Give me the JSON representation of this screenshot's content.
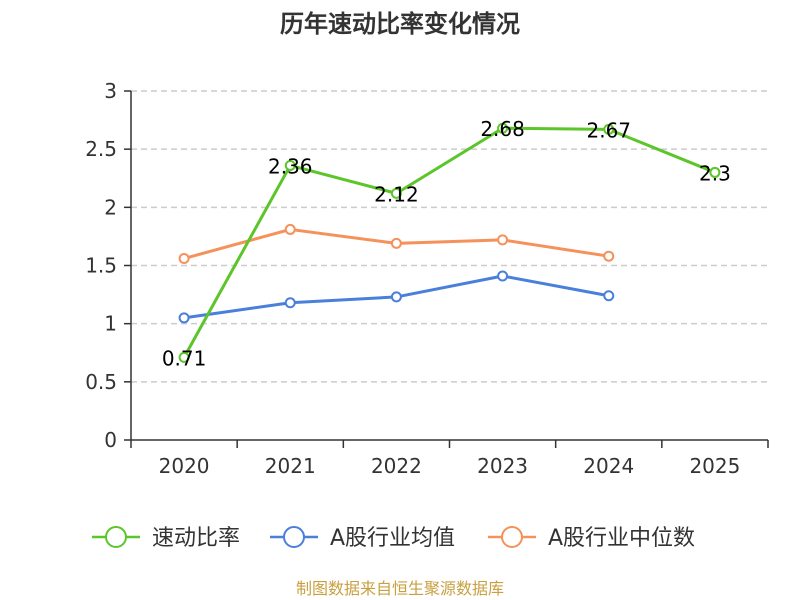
{
  "chart_data": {
    "type": "line",
    "title": "历年速动比率变化情况",
    "categories": [
      "2020",
      "2021",
      "2022",
      "2023",
      "2024",
      "2025"
    ],
    "ylim": [
      0,
      3
    ],
    "yticks": [
      0,
      0.5,
      1,
      1.5,
      2,
      2.5,
      3
    ],
    "series": [
      {
        "name": "速动比率",
        "color": "#5cc52a",
        "values": [
          0.71,
          2.36,
          2.12,
          2.68,
          2.67,
          2.3
        ],
        "show_labels": true
      },
      {
        "name": "A股行业均值",
        "color": "#4a7fdb",
        "values": [
          1.05,
          1.18,
          1.23,
          1.41,
          1.24,
          null
        ],
        "show_labels": false
      },
      {
        "name": "A股行业中位数",
        "color": "#f5915a",
        "values": [
          1.56,
          1.81,
          1.69,
          1.72,
          1.58,
          null
        ],
        "show_labels": false
      }
    ],
    "source": "制图数据来自恒生聚源数据库"
  }
}
